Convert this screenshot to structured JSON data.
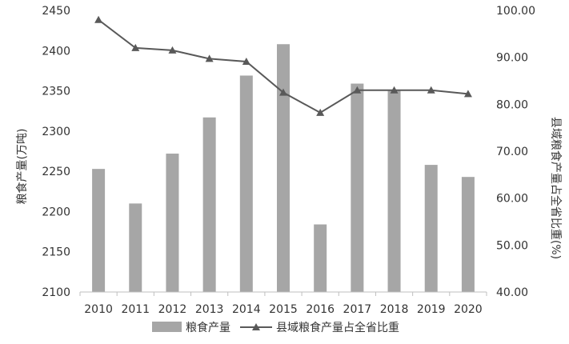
{
  "chart_data": {
    "type": "bar+line",
    "title": "",
    "categories": [
      "2010",
      "2011",
      "2012",
      "2013",
      "2014",
      "2015",
      "2016",
      "2017",
      "2018",
      "2019",
      "2020"
    ],
    "series": [
      {
        "name": "粮食产量",
        "type": "bar",
        "axis": "left",
        "color": "#a6a6a6",
        "values": [
          2253,
          2210,
          2272,
          2317,
          2369,
          2408,
          2184,
          2359,
          2350,
          2258,
          2243
        ]
      },
      {
        "name": "县域粮食产量占全省比重",
        "type": "line",
        "axis": "right",
        "color": "#595959",
        "marker": "triangle",
        "values": [
          98.0,
          92.0,
          91.5,
          89.7,
          89.1,
          82.5,
          78.2,
          83.0,
          83.0,
          83.0,
          82.2
        ]
      }
    ],
    "ylabel_left": "粮食产量(万吨)",
    "ylabel_right": "县域粮食产量占全省比重(%)",
    "ylim_left": [
      2100,
      2450
    ],
    "yticks_left": [
      "2100",
      "2150",
      "2200",
      "2250",
      "2300",
      "2350",
      "2400",
      "2450"
    ],
    "ylim_right": [
      40,
      100
    ],
    "yticks_right": [
      "40.00",
      "50.00",
      "60.00",
      "70.00",
      "80.00",
      "90.00",
      "100.00"
    ],
    "grid": false,
    "legend_position": "bottom"
  }
}
